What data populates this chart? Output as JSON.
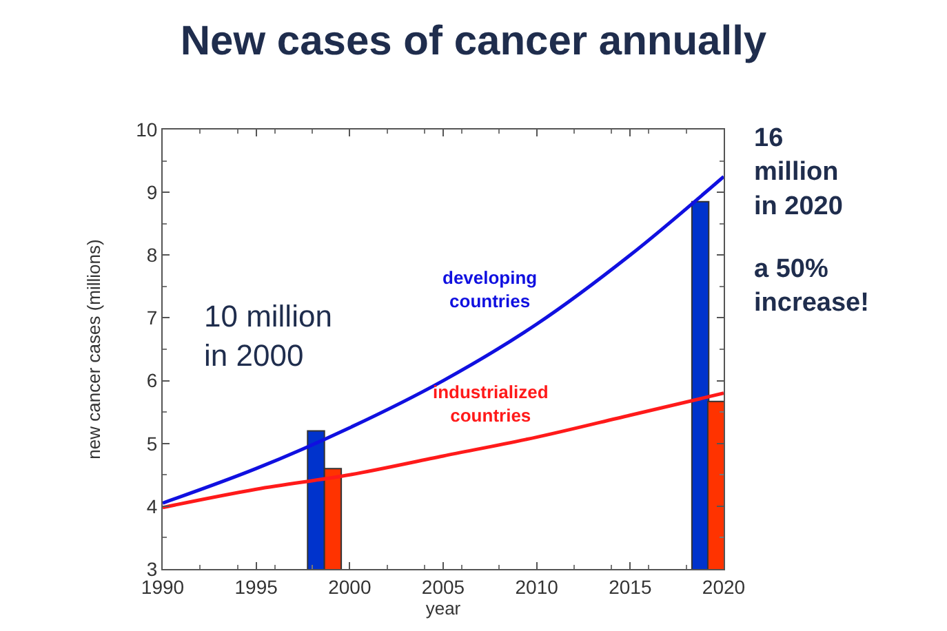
{
  "chart_data": {
    "type": "line",
    "title": "New cases of cancer annually",
    "xlabel": "year",
    "ylabel": "new cancer cases (millions)",
    "x": [
      1990,
      1995,
      2000,
      2005,
      2010,
      2015,
      2020
    ],
    "series": [
      {
        "name": "developing countries",
        "color": "#1010e0",
        "values": [
          4.05,
          4.6,
          5.25,
          6.0,
          6.9,
          8.0,
          9.25
        ]
      },
      {
        "name": "industrialized countries",
        "color": "#ff1a1a",
        "values": [
          3.98,
          4.27,
          4.5,
          4.8,
          5.1,
          5.45,
          5.8
        ]
      },
      {
        "type": "bar",
        "color": "#0033cc",
        "x": [
          1998.2,
          2018.75
        ],
        "values": [
          5.2,
          8.85
        ]
      },
      {
        "type": "bar",
        "color": "#ff3300",
        "x": [
          1999.1,
          2019.6
        ],
        "values": [
          4.6,
          5.67
        ]
      }
    ],
    "annotations": [
      "10 million\nin 2000",
      "16\nmillion\nin 2020",
      "a 50%\nincrease!"
    ],
    "xlim": [
      1990,
      2020
    ],
    "xticks": [
      1990,
      1995,
      2000,
      2005,
      2010,
      2015,
      2020
    ],
    "ylim": [
      3,
      10
    ],
    "yticks": [
      3,
      4,
      5,
      6,
      7,
      8,
      9,
      10
    ],
    "legend": false
  }
}
